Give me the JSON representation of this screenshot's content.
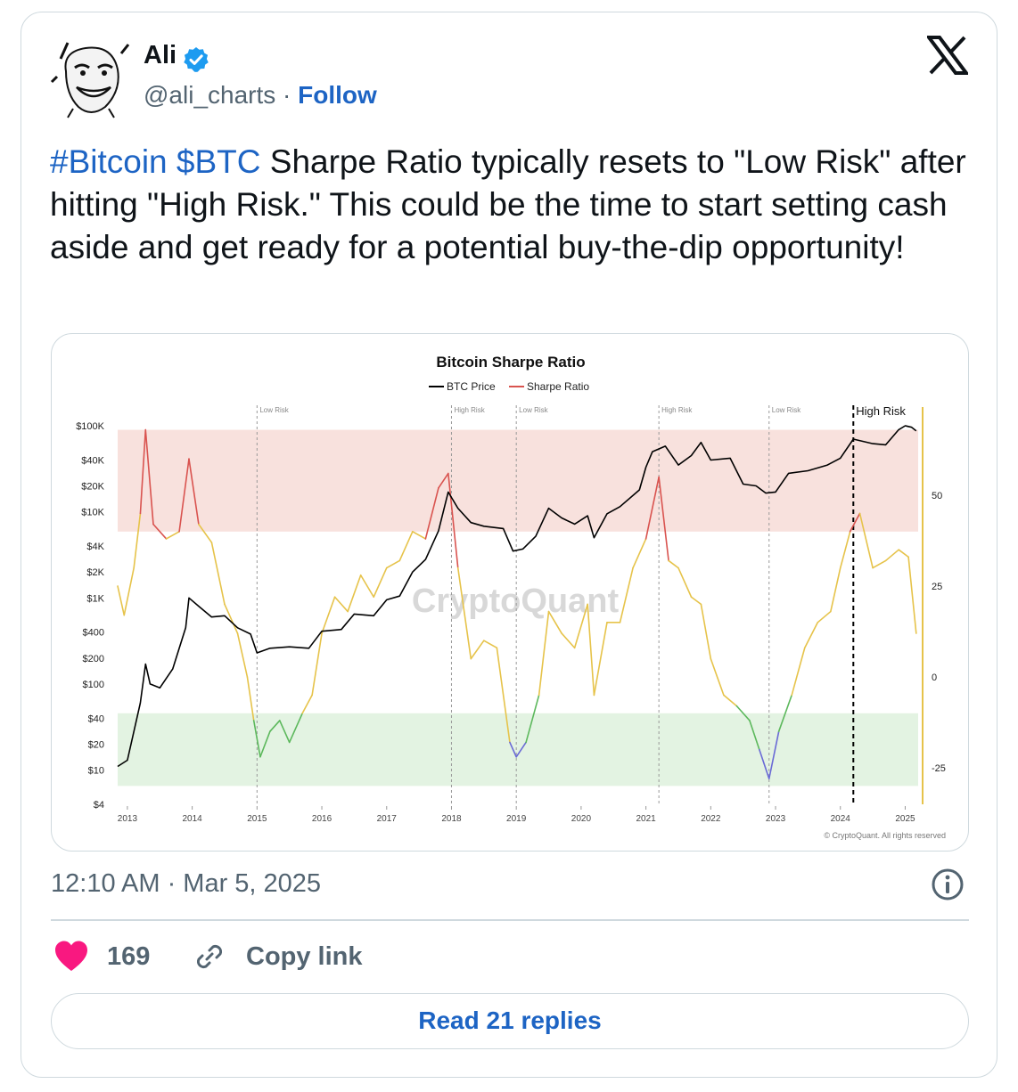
{
  "tweet": {
    "author_name": "Ali",
    "handle": "@ali_charts",
    "separator": " · ",
    "follow_label": "Follow",
    "text_tag1": "#Bitcoin",
    "text_tag2": "$BTC",
    "text_body": " Sharpe Ratio typically resets to \"Low Risk\" after hitting \"High Risk.\" This could be the time to start setting cash aside and get ready for a potential buy-the-dip opportunity!",
    "timestamp": "12:10 AM · Mar 5, 2025",
    "like_count": "169",
    "copy_link_label": "Copy link",
    "replies_label": "Read 21 replies",
    "icons": {
      "avatar": "avatar-cartoon",
      "verified": "verified-badge-icon",
      "platform": "x-logo-icon",
      "info": "info-icon",
      "like": "heart-icon",
      "link": "link-icon"
    },
    "colors": {
      "link": "#1d64c4",
      "like": "#f91880",
      "muted": "#536471",
      "border": "#cfd9de"
    }
  },
  "chart_data": {
    "type": "line",
    "title": "Bitcoin Sharpe Ratio",
    "legend": [
      "BTC Price",
      "Sharpe Ratio"
    ],
    "legend_position": "top-center",
    "watermark": "CryptoQuant",
    "credit": "© CryptoQuant. All rights reserved",
    "x_ticks": [
      "2013",
      "2014",
      "2015",
      "2016",
      "2017",
      "2018",
      "2019",
      "2020",
      "2021",
      "2022",
      "2023",
      "2024",
      "2025"
    ],
    "y_left_ticks": [
      "$100K",
      "$40K",
      "$20K",
      "$10K",
      "$4K",
      "$2K",
      "$1K",
      "$400",
      "$200",
      "$100",
      "$40",
      "$20",
      "$10",
      "$4"
    ],
    "y_left_scale": "log",
    "y_left_range": [
      4,
      100000
    ],
    "y_right_ticks": [
      "50",
      "25",
      "0",
      "-25"
    ],
    "y_right_range": [
      -35,
      55
    ],
    "zones": [
      {
        "name": "high-risk-zone",
        "from": 40,
        "to": 68,
        "color": "#f8e1dd"
      },
      {
        "name": "low-risk-zone",
        "from": -30,
        "to": -10,
        "color": "#e3f3e2"
      }
    ],
    "annotations": [
      {
        "label": "Low Risk",
        "x": 2015.0
      },
      {
        "label": "High Risk",
        "x": 2018.0
      },
      {
        "label": "Low Risk",
        "x": 2019.0
      },
      {
        "label": "High Risk",
        "x": 2021.2
      },
      {
        "label": "Low Risk",
        "x": 2022.9
      },
      {
        "label": "High Risk",
        "x": 2024.2
      }
    ],
    "series": [
      {
        "name": "BTC Price",
        "color": "#000000",
        "points": [
          [
            2012.85,
            11
          ],
          [
            2013.0,
            13
          ],
          [
            2013.2,
            60
          ],
          [
            2013.28,
            170
          ],
          [
            2013.35,
            100
          ],
          [
            2013.5,
            90
          ],
          [
            2013.7,
            150
          ],
          [
            2013.9,
            450
          ],
          [
            2013.95,
            1000
          ],
          [
            2014.1,
            800
          ],
          [
            2014.3,
            600
          ],
          [
            2014.5,
            620
          ],
          [
            2014.7,
            450
          ],
          [
            2014.9,
            380
          ],
          [
            2015.0,
            230
          ],
          [
            2015.2,
            260
          ],
          [
            2015.5,
            270
          ],
          [
            2015.8,
            260
          ],
          [
            2016.0,
            410
          ],
          [
            2016.3,
            430
          ],
          [
            2016.5,
            650
          ],
          [
            2016.8,
            620
          ],
          [
            2017.0,
            950
          ],
          [
            2017.2,
            1050
          ],
          [
            2017.4,
            2000
          ],
          [
            2017.6,
            2800
          ],
          [
            2017.8,
            6000
          ],
          [
            2017.95,
            17000
          ],
          [
            2018.1,
            11000
          ],
          [
            2018.3,
            7500
          ],
          [
            2018.5,
            6800
          ],
          [
            2018.8,
            6400
          ],
          [
            2018.95,
            3500
          ],
          [
            2019.1,
            3700
          ],
          [
            2019.3,
            5200
          ],
          [
            2019.5,
            11000
          ],
          [
            2019.7,
            8500
          ],
          [
            2019.9,
            7200
          ],
          [
            2020.1,
            9000
          ],
          [
            2020.2,
            5000
          ],
          [
            2020.4,
            9500
          ],
          [
            2020.6,
            11500
          ],
          [
            2020.9,
            18000
          ],
          [
            2021.0,
            33000
          ],
          [
            2021.1,
            50000
          ],
          [
            2021.3,
            58000
          ],
          [
            2021.5,
            35000
          ],
          [
            2021.7,
            45000
          ],
          [
            2021.85,
            64000
          ],
          [
            2022.0,
            40000
          ],
          [
            2022.3,
            42000
          ],
          [
            2022.5,
            21000
          ],
          [
            2022.7,
            20000
          ],
          [
            2022.85,
            16500
          ],
          [
            2023.0,
            17000
          ],
          [
            2023.2,
            28000
          ],
          [
            2023.5,
            30000
          ],
          [
            2023.8,
            35000
          ],
          [
            2024.0,
            42000
          ],
          [
            2024.2,
            70000
          ],
          [
            2024.5,
            62000
          ],
          [
            2024.7,
            60000
          ],
          [
            2024.9,
            90000
          ],
          [
            2025.0,
            100000
          ],
          [
            2025.1,
            96000
          ],
          [
            2025.17,
            87000
          ]
        ]
      },
      {
        "name": "Sharpe Ratio",
        "color": "#e6c34a",
        "colors_by_zone": {
          "high": "#d9534f",
          "mid": "#e6c34a",
          "low": "#5cb85c",
          "extreme_low": "#6a6ad6"
        },
        "points": [
          [
            2012.85,
            25
          ],
          [
            2012.95,
            17
          ],
          [
            2013.1,
            30
          ],
          [
            2013.2,
            45
          ],
          [
            2013.28,
            68
          ],
          [
            2013.4,
            42
          ],
          [
            2013.6,
            38
          ],
          [
            2013.8,
            40
          ],
          [
            2013.95,
            60
          ],
          [
            2014.1,
            42
          ],
          [
            2014.3,
            37
          ],
          [
            2014.5,
            20
          ],
          [
            2014.7,
            12
          ],
          [
            2014.85,
            0
          ],
          [
            2014.95,
            -12
          ],
          [
            2015.05,
            -22
          ],
          [
            2015.2,
            -15
          ],
          [
            2015.35,
            -12
          ],
          [
            2015.5,
            -18
          ],
          [
            2015.7,
            -10
          ],
          [
            2015.85,
            -5
          ],
          [
            2016.0,
            12
          ],
          [
            2016.2,
            22
          ],
          [
            2016.4,
            18
          ],
          [
            2016.6,
            28
          ],
          [
            2016.8,
            22
          ],
          [
            2017.0,
            30
          ],
          [
            2017.2,
            32
          ],
          [
            2017.4,
            40
          ],
          [
            2017.6,
            38
          ],
          [
            2017.8,
            52
          ],
          [
            2017.95,
            56
          ],
          [
            2018.1,
            30
          ],
          [
            2018.3,
            5
          ],
          [
            2018.5,
            10
          ],
          [
            2018.7,
            8
          ],
          [
            2018.9,
            -18
          ],
          [
            2019.0,
            -22
          ],
          [
            2019.15,
            -18
          ],
          [
            2019.35,
            -5
          ],
          [
            2019.5,
            18
          ],
          [
            2019.7,
            12
          ],
          [
            2019.9,
            8
          ],
          [
            2020.1,
            20
          ],
          [
            2020.2,
            -5
          ],
          [
            2020.4,
            15
          ],
          [
            2020.6,
            15
          ],
          [
            2020.8,
            30
          ],
          [
            2021.0,
            38
          ],
          [
            2021.2,
            55
          ],
          [
            2021.35,
            32
          ],
          [
            2021.5,
            30
          ],
          [
            2021.7,
            22
          ],
          [
            2021.85,
            20
          ],
          [
            2022.0,
            5
          ],
          [
            2022.2,
            -5
          ],
          [
            2022.4,
            -8
          ],
          [
            2022.6,
            -12
          ],
          [
            2022.75,
            -20
          ],
          [
            2022.9,
            -28
          ],
          [
            2023.05,
            -15
          ],
          [
            2023.25,
            -5
          ],
          [
            2023.45,
            8
          ],
          [
            2023.65,
            15
          ],
          [
            2023.85,
            18
          ],
          [
            2024.0,
            30
          ],
          [
            2024.15,
            40
          ],
          [
            2024.3,
            45
          ],
          [
            2024.5,
            30
          ],
          [
            2024.7,
            32
          ],
          [
            2024.9,
            35
          ],
          [
            2025.05,
            33
          ],
          [
            2025.17,
            12
          ]
        ]
      }
    ]
  }
}
